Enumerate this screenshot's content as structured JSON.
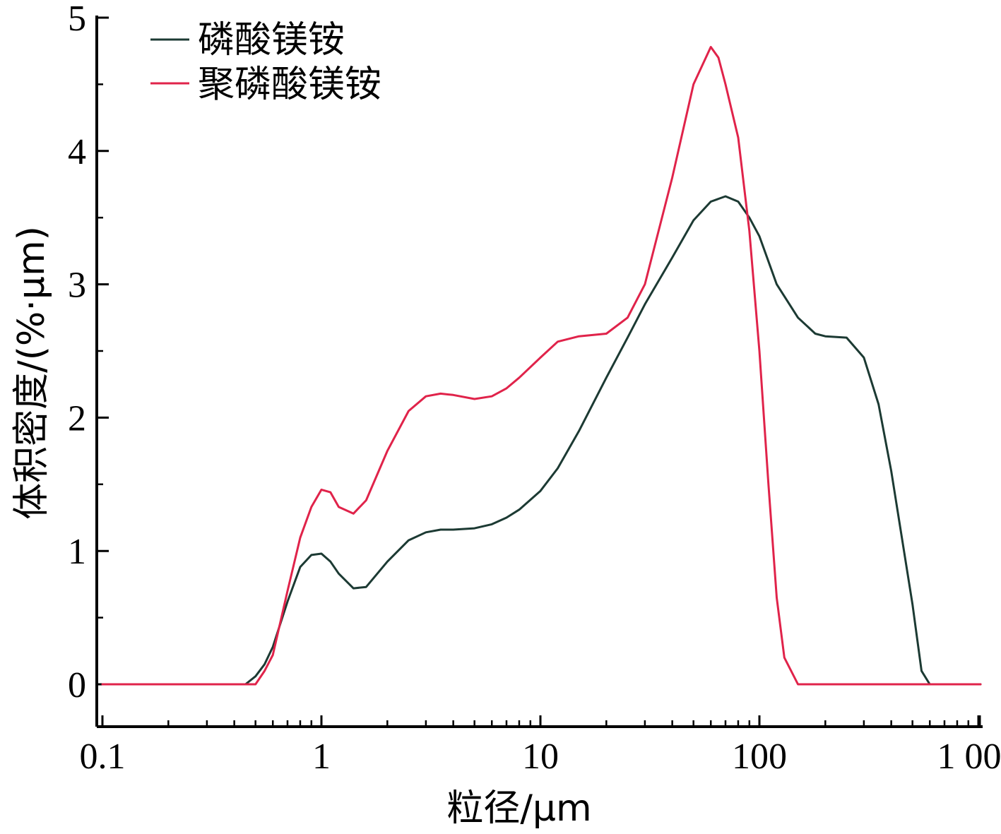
{
  "chart_data": {
    "type": "line",
    "title": "",
    "xlabel": "粒径/μm",
    "ylabel": "体积密度/(%·μm)",
    "x_scale": "log",
    "xlim": [
      0.1,
      1000
    ],
    "ylim": [
      -0.3,
      5
    ],
    "x_ticks": [
      {
        "value": 0.1,
        "label": "0.1"
      },
      {
        "value": 1,
        "label": "1"
      },
      {
        "value": 10,
        "label": "10"
      },
      {
        "value": 100,
        "label": "100"
      },
      {
        "value": 1000,
        "label": "1 000"
      }
    ],
    "y_ticks": [
      {
        "value": 0,
        "label": "0"
      },
      {
        "value": 1,
        "label": "1"
      },
      {
        "value": 2,
        "label": "2"
      },
      {
        "value": 3,
        "label": "3"
      },
      {
        "value": 4,
        "label": "4"
      },
      {
        "value": 5,
        "label": "5"
      }
    ],
    "legend_position": "top-left",
    "grid": false,
    "series": [
      {
        "name": "磷酸镁铵",
        "color": "#1c3a33",
        "x": [
          0.1,
          0.45,
          0.5,
          0.55,
          0.6,
          0.7,
          0.8,
          0.9,
          1.0,
          1.1,
          1.2,
          1.4,
          1.6,
          2.0,
          2.5,
          3.0,
          3.5,
          4.0,
          5.0,
          6.0,
          7.0,
          8.0,
          10,
          12,
          15,
          20,
          25,
          30,
          40,
          50,
          60,
          70,
          80,
          90,
          100,
          120,
          150,
          180,
          200,
          250,
          300,
          350,
          400,
          500,
          550,
          600,
          1400
        ],
        "y": [
          0,
          0,
          0.06,
          0.15,
          0.28,
          0.62,
          0.88,
          0.97,
          0.98,
          0.92,
          0.83,
          0.72,
          0.73,
          0.92,
          1.08,
          1.14,
          1.16,
          1.16,
          1.17,
          1.2,
          1.25,
          1.31,
          1.45,
          1.62,
          1.9,
          2.3,
          2.6,
          2.85,
          3.2,
          3.48,
          3.62,
          3.66,
          3.62,
          3.5,
          3.36,
          3.0,
          2.75,
          2.63,
          2.61,
          2.6,
          2.45,
          2.1,
          1.6,
          0.6,
          0.1,
          0,
          0
        ]
      },
      {
        "name": "聚磷酸镁铵",
        "color": "#e0234a",
        "x": [
          0.1,
          0.45,
          0.5,
          0.55,
          0.6,
          0.7,
          0.8,
          0.9,
          1.0,
          1.1,
          1.2,
          1.4,
          1.6,
          2.0,
          2.5,
          3.0,
          3.5,
          4.0,
          5.0,
          6.0,
          7.0,
          8.0,
          10,
          12,
          15,
          20,
          25,
          30,
          40,
          50,
          60,
          65,
          70,
          80,
          90,
          100,
          110,
          120,
          130,
          150,
          1400
        ],
        "y": [
          0,
          0,
          0,
          0.1,
          0.22,
          0.7,
          1.1,
          1.33,
          1.46,
          1.44,
          1.33,
          1.28,
          1.38,
          1.75,
          2.05,
          2.16,
          2.18,
          2.17,
          2.14,
          2.16,
          2.22,
          2.3,
          2.45,
          2.57,
          2.61,
          2.63,
          2.75,
          3.0,
          3.8,
          4.5,
          4.78,
          4.7,
          4.5,
          4.1,
          3.4,
          2.5,
          1.5,
          0.65,
          0.2,
          0,
          0
        ]
      }
    ]
  }
}
